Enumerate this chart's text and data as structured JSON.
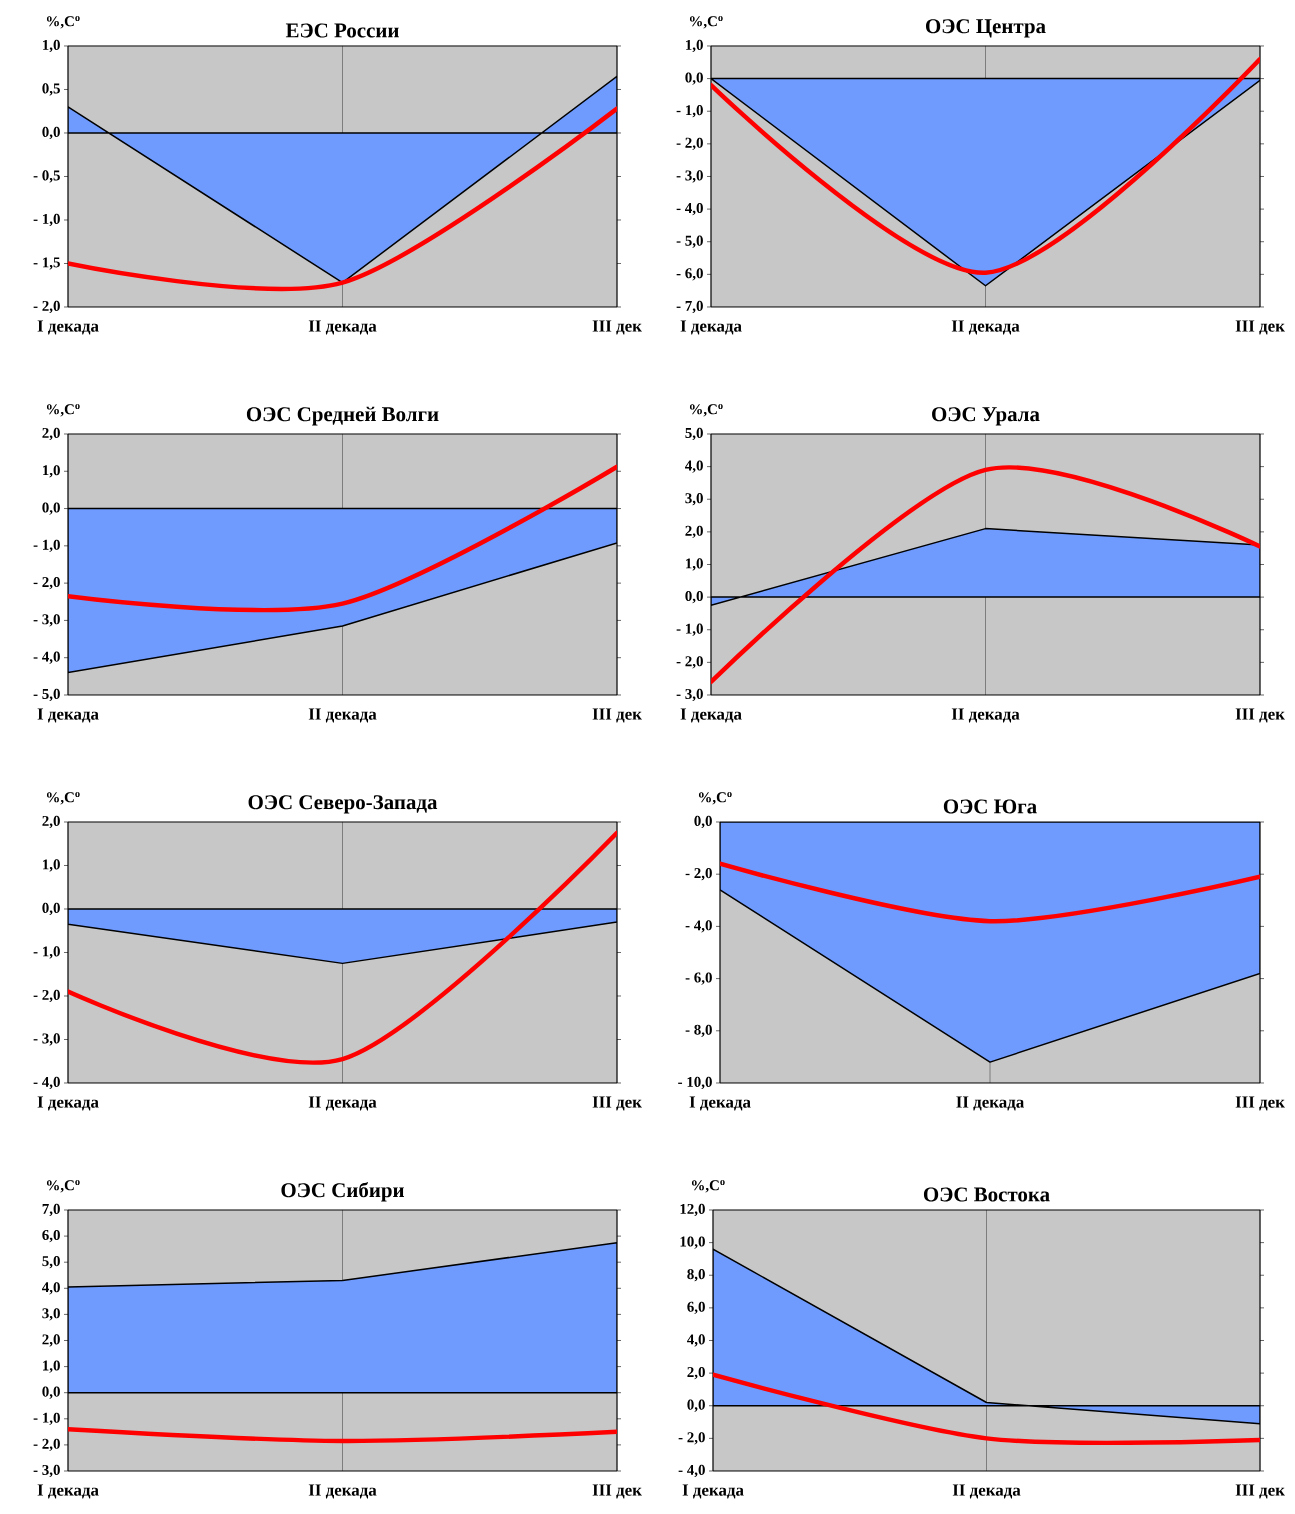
{
  "chart_data": [
    {
      "type": "area",
      "title": "ЕЭС России",
      "ylabel": "%,C$^{o}$",
      "categories": [
        "I декада",
        "II декада",
        "III дек"
      ],
      "ylim": [
        -2,
        1
      ],
      "grid": "x",
      "yticks": [
        {
          "value": -2,
          "label": "- 2,0"
        },
        {
          "value": -1.5,
          "label": "- 1,5"
        },
        {
          "value": -1,
          "label": "- 1,0"
        },
        {
          "value": -0.5,
          "label": "- 0,5"
        },
        {
          "value": 0,
          "label": "0,0"
        },
        {
          "value": 0.5,
          "label": "0,5"
        },
        {
          "value": 1,
          "label": "1,0"
        }
      ],
      "series": [
        {
          "color": "#6f9bff",
          "values": [
            0.3,
            -1.72,
            0.65
          ]
        },
        {
          "type": "line",
          "color": "#ff0000",
          "values": [
            -1.5,
            -1.72,
            0.28
          ]
        }
      ]
    },
    {
      "type": "area",
      "title": "ОЭС Центра",
      "ylabel": "%,C$^{o}$",
      "categories": [
        "I декада",
        "II декада",
        "III дек"
      ],
      "ylim": [
        -7,
        1
      ],
      "grid": "x",
      "yticks": [
        {
          "value": -7,
          "label": "- 7,0"
        },
        {
          "value": -6,
          "label": "- 6,0"
        },
        {
          "value": -5,
          "label": "- 5,0"
        },
        {
          "value": -4,
          "label": "- 4,0"
        },
        {
          "value": -3,
          "label": "- 3,0"
        },
        {
          "value": -2,
          "label": "- 2,0"
        },
        {
          "value": -1,
          "label": "- 1,0"
        },
        {
          "value": 0,
          "label": "0,0"
        },
        {
          "value": 1,
          "label": "1,0"
        }
      ],
      "series": [
        {
          "color": "#6f9bff",
          "values": [
            0.0,
            -6.35,
            -0.05
          ]
        },
        {
          "type": "line",
          "color": "#ff0000",
          "values": [
            -0.2,
            -5.95,
            0.6
          ]
        }
      ]
    },
    {
      "type": "area",
      "title": "ОЭС Средней Волги",
      "ylabel": "%,C$^{o}$",
      "categories": [
        "I декада",
        "II декада",
        "III дек"
      ],
      "ylim": [
        -5,
        2
      ],
      "grid": "x",
      "yticks": [
        {
          "value": -5,
          "label": "- 5,0"
        },
        {
          "value": -4,
          "label": "- 4,0"
        },
        {
          "value": -3,
          "label": "- 3,0"
        },
        {
          "value": -2,
          "label": "- 2,0"
        },
        {
          "value": -1,
          "label": "- 1,0"
        },
        {
          "value": 0,
          "label": "0,0"
        },
        {
          "value": 1,
          "label": "1,0"
        },
        {
          "value": 2,
          "label": "2,0"
        }
      ],
      "series": [
        {
          "color": "#6f9bff",
          "values": [
            -4.4,
            -3.15,
            -0.92
          ]
        },
        {
          "type": "line",
          "color": "#ff0000",
          "values": [
            -2.35,
            -2.55,
            1.12
          ]
        }
      ]
    },
    {
      "type": "area",
      "title": "ОЭС Урала",
      "ylabel": "%,C$^{o}$",
      "categories": [
        "I декада",
        "II декада",
        "III дек"
      ],
      "ylim": [
        -3,
        5
      ],
      "grid": "x",
      "yticks": [
        {
          "value": -3,
          "label": "- 3,0"
        },
        {
          "value": -2,
          "label": "- 2,0"
        },
        {
          "value": -1,
          "label": "- 1,0"
        },
        {
          "value": 0,
          "label": "0,0"
        },
        {
          "value": 1,
          "label": "1,0"
        },
        {
          "value": 2,
          "label": "2,0"
        },
        {
          "value": 3,
          "label": "3,0"
        },
        {
          "value": 4,
          "label": "4,0"
        },
        {
          "value": 5,
          "label": "5,0"
        }
      ],
      "series": [
        {
          "color": "#6f9bff",
          "values": [
            -0.25,
            2.1,
            1.6
          ]
        },
        {
          "type": "line",
          "color": "#ff0000",
          "values": [
            -2.6,
            3.9,
            1.55
          ]
        }
      ]
    },
    {
      "type": "area",
      "title": "ОЭС Северо-Запада",
      "ylabel": "%,C$^{o}$",
      "categories": [
        "I декада",
        "II декада",
        "III дек"
      ],
      "ylim": [
        -4,
        2
      ],
      "grid": "x",
      "yticks": [
        {
          "value": -4,
          "label": "- 4,0"
        },
        {
          "value": -3,
          "label": "- 3,0"
        },
        {
          "value": -2,
          "label": "- 2,0"
        },
        {
          "value": -1,
          "label": "- 1,0"
        },
        {
          "value": 0,
          "label": "0,0"
        },
        {
          "value": 1,
          "label": "1,0"
        },
        {
          "value": 2,
          "label": "2,0"
        }
      ],
      "series": [
        {
          "color": "#6f9bff",
          "values": [
            -0.35,
            -1.25,
            -0.3
          ]
        },
        {
          "type": "line",
          "color": "#ff0000",
          "values": [
            -1.9,
            -3.45,
            1.75
          ]
        }
      ]
    },
    {
      "type": "area",
      "title": "ОЭС Юга",
      "ylabel": "%,C$^{o}$",
      "categories": [
        "I декада",
        "II декада",
        "III дек"
      ],
      "ylim": [
        -10,
        0
      ],
      "grid": "x",
      "yticks": [
        {
          "value": -10,
          "label": "- 10,0"
        },
        {
          "value": -8,
          "label": "- 8,0"
        },
        {
          "value": -6,
          "label": "- 6,0"
        },
        {
          "value": -4,
          "label": "- 4,0"
        },
        {
          "value": -2,
          "label": "- 2,0"
        },
        {
          "value": 0,
          "label": "0,0"
        }
      ],
      "series": [
        {
          "color": "#6f9bff",
          "values": [
            -2.6,
            -9.2,
            -5.8
          ]
        },
        {
          "type": "line",
          "color": "#ff0000",
          "values": [
            -1.6,
            -3.8,
            -2.1
          ]
        }
      ]
    },
    {
      "type": "area",
      "title": "ОЭС Сибири",
      "ylabel": "%,C$^{o}$",
      "categories": [
        "I декада",
        "II декада",
        "III дек"
      ],
      "ylim": [
        -3,
        7
      ],
      "grid": "x",
      "yticks": [
        {
          "value": -3,
          "label": "- 3,0"
        },
        {
          "value": -2,
          "label": "- 2,0"
        },
        {
          "value": -1,
          "label": "- 1,0"
        },
        {
          "value": 0,
          "label": "0,0"
        },
        {
          "value": 1,
          "label": "1,0"
        },
        {
          "value": 2,
          "label": "2,0"
        },
        {
          "value": 3,
          "label": "3,0"
        },
        {
          "value": 4,
          "label": "4,0"
        },
        {
          "value": 5,
          "label": "5,0"
        },
        {
          "value": 6,
          "label": "6,0"
        },
        {
          "value": 7,
          "label": "7,0"
        }
      ],
      "series": [
        {
          "color": "#6f9bff",
          "values": [
            4.05,
            4.3,
            5.75
          ]
        },
        {
          "type": "line",
          "color": "#ff0000",
          "values": [
            -1.4,
            -1.85,
            -1.5
          ]
        }
      ]
    },
    {
      "type": "area",
      "title": "ОЭС Востока",
      "ylabel": "%,C$^{o}$",
      "categories": [
        "I декада",
        "II декада",
        "III дек"
      ],
      "ylim": [
        -4,
        12
      ],
      "grid": "x",
      "yticks": [
        {
          "value": -4,
          "label": "- 4,0"
        },
        {
          "value": -2,
          "label": "- 2,0"
        },
        {
          "value": 0,
          "label": "0,0"
        },
        {
          "value": 2,
          "label": "2,0"
        },
        {
          "value": 4,
          "label": "4,0"
        },
        {
          "value": 6,
          "label": "6,0"
        },
        {
          "value": 8,
          "label": "8,0"
        },
        {
          "value": 10,
          "label": "10,0"
        },
        {
          "value": 12,
          "label": "12,0"
        }
      ],
      "series": [
        {
          "color": "#6f9bff",
          "values": [
            9.6,
            0.2,
            -1.1
          ]
        },
        {
          "type": "line",
          "color": "#ff0000",
          "values": [
            1.9,
            -2.0,
            -2.1
          ]
        }
      ]
    }
  ]
}
